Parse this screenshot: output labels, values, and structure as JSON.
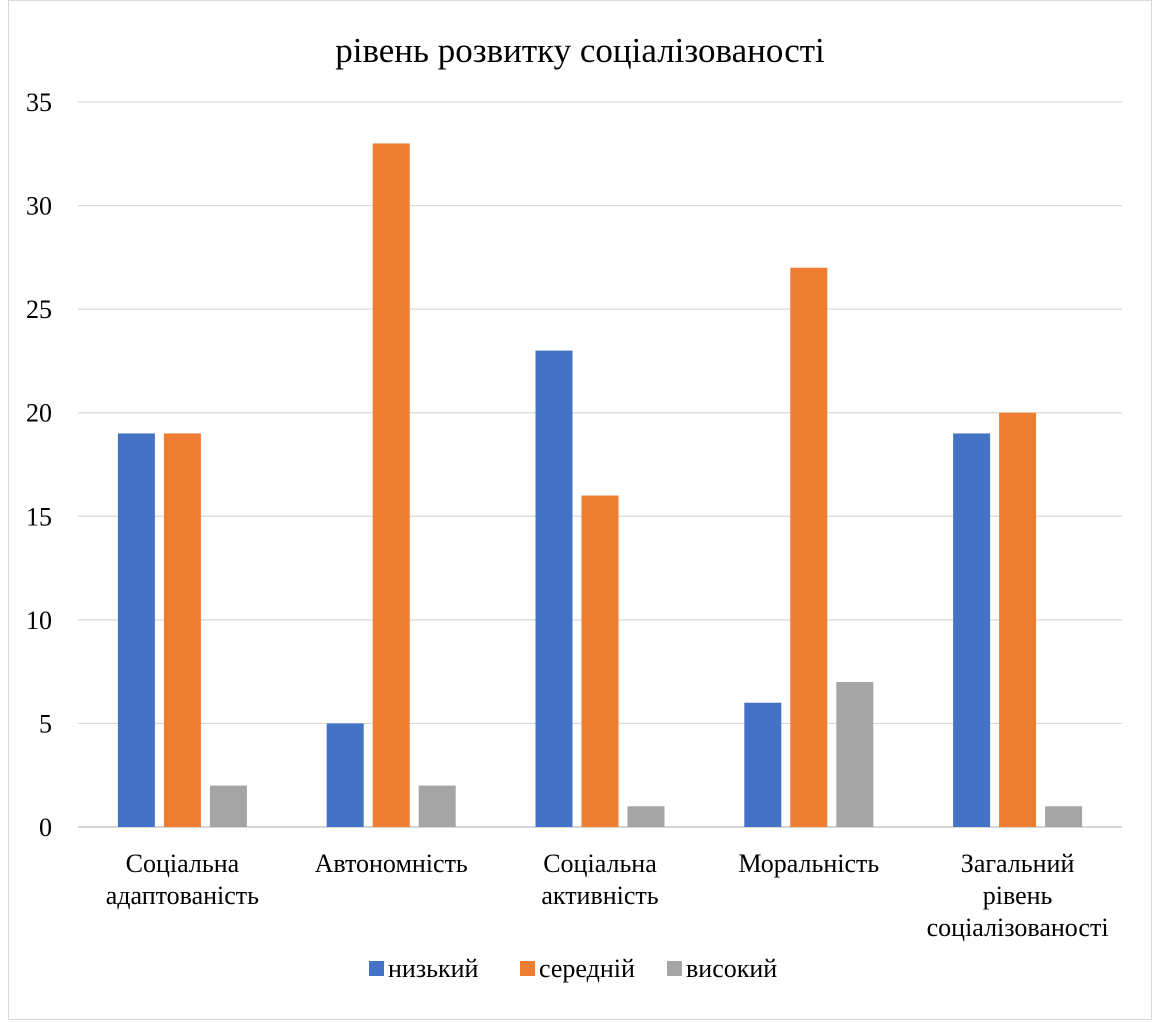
{
  "chart_data": {
    "type": "bar",
    "title": "рівень розвитку соціалізованості",
    "categories": [
      [
        "Соціальна",
        "адаптованість"
      ],
      [
        "Автономність"
      ],
      [
        "Соціальна",
        "активність"
      ],
      [
        "Моральність"
      ],
      [
        "Загальний",
        "рівень",
        "соціалізованості"
      ]
    ],
    "series": [
      {
        "name": "низький",
        "color": "#4472c4",
        "values": [
          19,
          5,
          23,
          6,
          19
        ]
      },
      {
        "name": "середній",
        "color": "#ed7d31",
        "values": [
          19,
          33,
          16,
          27,
          20
        ]
      },
      {
        "name": "високий",
        "color": "#a5a5a5",
        "values": [
          2,
          2,
          1,
          7,
          1
        ]
      }
    ],
    "ylim": [
      0,
      35
    ],
    "yticks": [
      0,
      5,
      10,
      15,
      20,
      25,
      30,
      35
    ],
    "grid": true,
    "legend_position": "bottom"
  }
}
